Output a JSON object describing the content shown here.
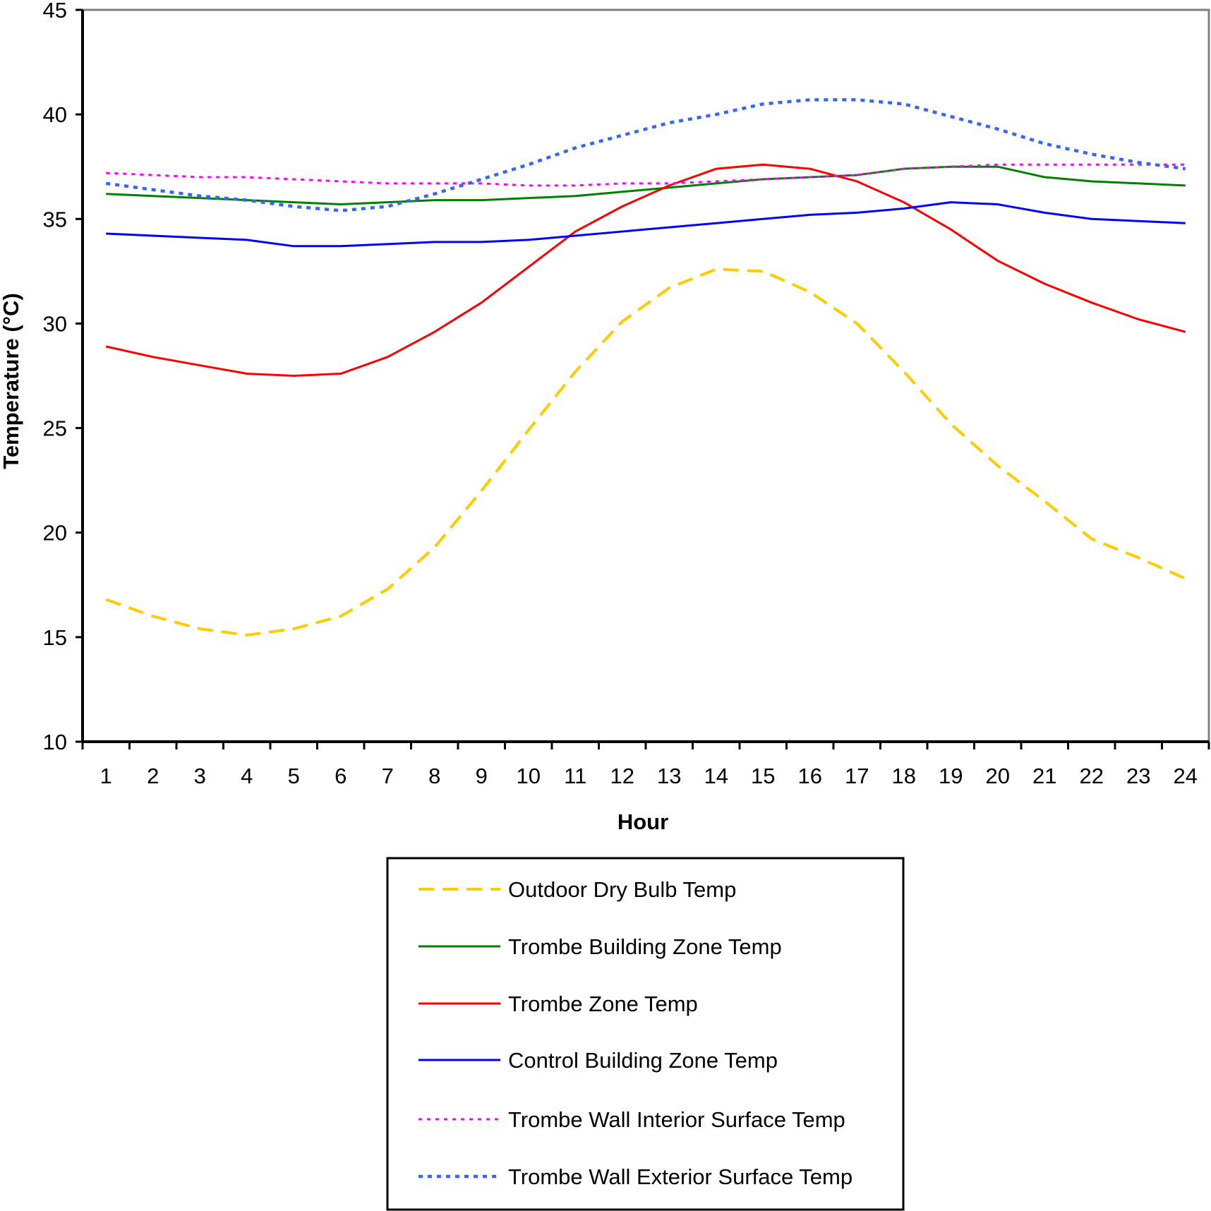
{
  "chart_data": {
    "type": "line",
    "title": "",
    "xlabel": "Hour",
    "ylabel": "Temperature (°C)",
    "ylim": [
      10,
      45
    ],
    "yticks": [
      10,
      15,
      20,
      25,
      30,
      35,
      40,
      45
    ],
    "categories": [
      1,
      2,
      3,
      4,
      5,
      6,
      7,
      8,
      9,
      10,
      11,
      12,
      13,
      14,
      15,
      16,
      17,
      18,
      19,
      20,
      21,
      22,
      23,
      24
    ],
    "grid": false,
    "legend_position": "bottom",
    "series": [
      {
        "name": "Outdoor Dry Bulb Temp",
        "color": "#FFCC00",
        "style": "dashed",
        "values": [
          16.8,
          16.0,
          15.4,
          15.1,
          15.4,
          16.0,
          17.3,
          19.3,
          22.0,
          24.9,
          27.7,
          30.1,
          31.7,
          32.6,
          32.5,
          31.5,
          30.0,
          27.7,
          25.2,
          23.2,
          21.5,
          19.7,
          18.8,
          17.8
        ]
      },
      {
        "name": "Trombe Building Zone Temp",
        "color": "#008000",
        "style": "solid",
        "values": [
          36.2,
          36.1,
          36.0,
          35.9,
          35.8,
          35.7,
          35.8,
          35.9,
          35.9,
          36.0,
          36.1,
          36.3,
          36.5,
          36.7,
          36.9,
          37.0,
          37.1,
          37.4,
          37.5,
          37.5,
          37.0,
          36.8,
          36.7,
          36.6
        ]
      },
      {
        "name": "Trombe Zone Temp",
        "color": "#FF0000",
        "style": "solid",
        "values": [
          28.9,
          28.4,
          28.0,
          27.6,
          27.5,
          27.6,
          28.4,
          29.6,
          31.0,
          32.7,
          34.4,
          35.6,
          36.6,
          37.4,
          37.6,
          37.4,
          36.8,
          35.8,
          34.5,
          33.0,
          31.9,
          31.0,
          30.2,
          29.6
        ]
      },
      {
        "name": "Control Building Zone Temp",
        "color": "#0000FF",
        "style": "solid",
        "values": [
          34.3,
          34.2,
          34.1,
          34.0,
          33.7,
          33.7,
          33.8,
          33.9,
          33.9,
          34.0,
          34.2,
          34.4,
          34.6,
          34.8,
          35.0,
          35.2,
          35.3,
          35.5,
          35.8,
          35.7,
          35.3,
          35.0,
          34.9,
          34.8
        ]
      },
      {
        "name": "Trombe Wall Interior Surface Temp",
        "color": "#FF00FF",
        "style": "dotted",
        "values": [
          37.2,
          37.1,
          37.0,
          37.0,
          36.9,
          36.8,
          36.7,
          36.7,
          36.7,
          36.6,
          36.6,
          36.7,
          36.7,
          36.8,
          36.9,
          37.0,
          37.1,
          37.4,
          37.5,
          37.6,
          37.6,
          37.6,
          37.6,
          37.6
        ]
      },
      {
        "name": "Trombe Wall Exterior Surface Temp",
        "color": "#3366FF",
        "style": "dotted-bold",
        "values": [
          36.7,
          36.4,
          36.1,
          35.9,
          35.6,
          35.4,
          35.6,
          36.2,
          36.9,
          37.6,
          38.4,
          39.0,
          39.6,
          40.0,
          40.5,
          40.7,
          40.7,
          40.5,
          39.9,
          39.3,
          38.6,
          38.1,
          37.7,
          37.4
        ]
      }
    ]
  }
}
